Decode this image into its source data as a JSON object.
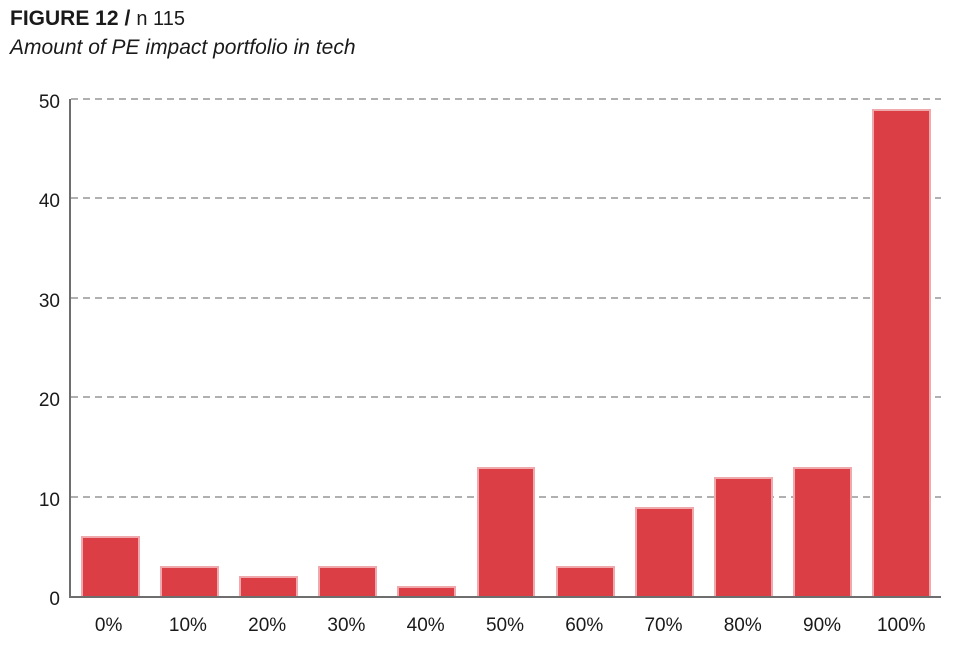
{
  "figure": {
    "label": "FIGURE 12",
    "separator": "/",
    "sample_size": "n 115",
    "subtitle": "Amount of PE impact portfolio in tech"
  },
  "chart_data": {
    "type": "bar",
    "title": "FIGURE 12 / n 115",
    "subtitle": "Amount of PE impact portfolio in tech",
    "categories": [
      "0%",
      "10%",
      "20%",
      "30%",
      "40%",
      "50%",
      "60%",
      "70%",
      "80%",
      "90%",
      "100%"
    ],
    "values": [
      6,
      3,
      2,
      3,
      1,
      13,
      3,
      9,
      12,
      13,
      49
    ],
    "xlabel": "",
    "ylabel": "",
    "ylim": [
      0,
      50
    ],
    "yticks": [
      0,
      10,
      20,
      30,
      40,
      50
    ],
    "grid": "horizontal-dashed",
    "legend": "none",
    "colors": {
      "bar": "#dc3e45",
      "bar_edge": "rgba(255,255,255,0.55)",
      "gridline": "#b0b0b0",
      "axis": "#6e6e6e",
      "text": "#1a1a1a"
    }
  }
}
